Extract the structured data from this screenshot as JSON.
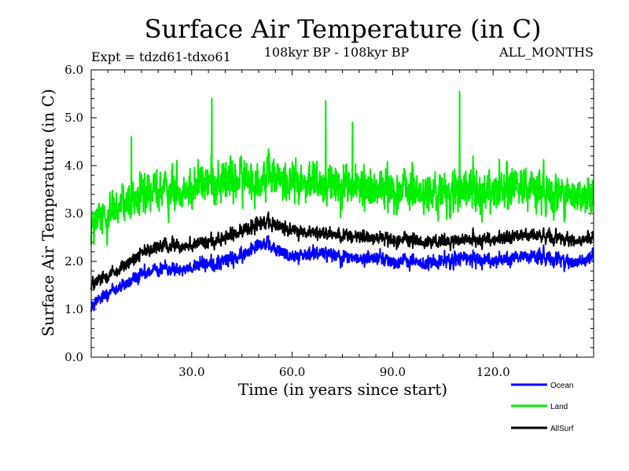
{
  "chart_data": {
    "type": "line",
    "title": "Surface Air Temperature (in C)",
    "subtitle": "108kyr BP - 108kyr BP",
    "experiment": "Expt = tdzd61-tdxo61",
    "months": "ALL_MONTHS",
    "xlabel": "Time (in years since start)",
    "ylabel": "Surface Air Temperature (in C)",
    "xlim": [
      0,
      150
    ],
    "ylim": [
      0.0,
      6.0
    ],
    "xticks": [
      "30.0",
      "60.0",
      "90.0",
      "120.0"
    ],
    "xtick_values": [
      30,
      60,
      90,
      120
    ],
    "yticks": [
      "0.0",
      "1.0",
      "2.0",
      "3.0",
      "4.0",
      "5.0",
      "6.0"
    ],
    "ytick_values": [
      0,
      1,
      2,
      3,
      4,
      5,
      6
    ],
    "legend_position": "bottom-right-outside",
    "series": [
      {
        "name": "Ocean",
        "color": "#0000ff",
        "x": [
          0,
          5,
          10,
          15,
          20,
          25,
          30,
          35,
          40,
          45,
          50,
          55,
          60,
          65,
          70,
          75,
          80,
          85,
          90,
          95,
          100,
          105,
          110,
          115,
          120,
          125,
          130,
          135,
          140,
          145,
          150
        ],
        "values": [
          1.05,
          1.35,
          1.5,
          1.7,
          1.85,
          1.85,
          1.9,
          1.95,
          2.0,
          2.1,
          2.4,
          2.25,
          2.1,
          2.15,
          2.2,
          2.1,
          2.05,
          2.1,
          2.0,
          2.0,
          1.95,
          2.0,
          2.05,
          2.05,
          2.0,
          2.05,
          2.1,
          2.1,
          2.05,
          1.95,
          2.1
        ],
        "noise": 0.22
      },
      {
        "name": "Land",
        "color": "#00ee00",
        "x": [
          0,
          5,
          10,
          15,
          20,
          25,
          30,
          35,
          40,
          45,
          50,
          55,
          60,
          65,
          70,
          75,
          80,
          85,
          90,
          95,
          100,
          105,
          110,
          115,
          120,
          125,
          130,
          135,
          140,
          145,
          150
        ],
        "values": [
          2.7,
          3.0,
          3.2,
          3.35,
          3.5,
          3.5,
          3.6,
          3.65,
          3.7,
          3.7,
          3.75,
          3.7,
          3.65,
          3.65,
          3.7,
          3.6,
          3.55,
          3.55,
          3.5,
          3.45,
          3.4,
          3.4,
          3.45,
          3.45,
          3.5,
          3.55,
          3.55,
          3.5,
          3.45,
          3.35,
          3.3
        ],
        "noise": 0.6,
        "peaks": [
          [
            36,
            5.4
          ],
          [
            70,
            5.35
          ],
          [
            110,
            5.55
          ],
          [
            78,
            4.9
          ],
          [
            12,
            4.6
          ]
        ]
      },
      {
        "name": "AllSurf",
        "color": "#000000",
        "x": [
          0,
          5,
          10,
          15,
          20,
          25,
          30,
          35,
          40,
          45,
          50,
          55,
          60,
          65,
          70,
          75,
          80,
          85,
          90,
          95,
          100,
          105,
          110,
          115,
          120,
          125,
          130,
          135,
          140,
          145,
          150
        ],
        "values": [
          1.5,
          1.7,
          1.9,
          2.15,
          2.3,
          2.35,
          2.35,
          2.4,
          2.5,
          2.6,
          2.85,
          2.75,
          2.65,
          2.6,
          2.6,
          2.55,
          2.5,
          2.5,
          2.45,
          2.45,
          2.4,
          2.4,
          2.45,
          2.45,
          2.45,
          2.5,
          2.55,
          2.55,
          2.5,
          2.4,
          2.5
        ],
        "noise": 0.2
      }
    ]
  }
}
